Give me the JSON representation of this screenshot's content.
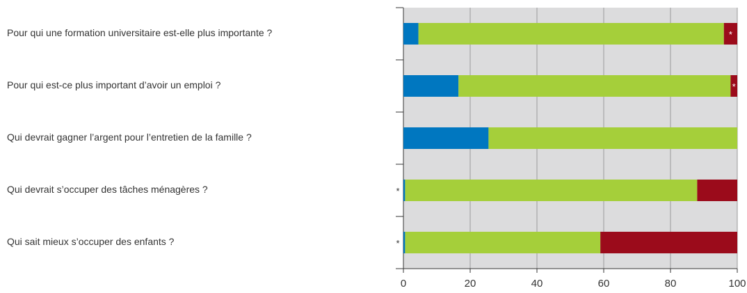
{
  "chart_data": {
    "type": "stacked_barh",
    "categories": [
      "Pour qui une formation universitaire est-elle plus importante ?",
      "Pour qui est-ce plus important d’avoir un emploi ?",
      "Qui devrait gagner l’argent pour l’entretien de la famille ?",
      "Qui devrait s’occuper des tâches ménagères ?",
      "Qui sait mieux s’occuper des enfants ?"
    ],
    "series": [
      {
        "color": "#0077c0",
        "values": [
          4.5,
          16.5,
          25.5,
          0.5,
          0.5
        ]
      },
      {
        "color": "#a5cf3a",
        "values": [
          91.5,
          81.5,
          74.5,
          87.5,
          58.5
        ]
      },
      {
        "color": "#9b0b1b",
        "values": [
          4,
          2,
          0,
          12,
          41
        ]
      }
    ],
    "annotations": [
      {
        "text": "*",
        "series": 2,
        "category": 0
      },
      {
        "text": "*",
        "series": 2,
        "category": 1
      },
      {
        "text": "*",
        "series": 0,
        "category": 3
      },
      {
        "text": "*",
        "series": 0,
        "category": 4
      }
    ],
    "xlim": [
      0,
      100
    ],
    "xticks": [
      0,
      20,
      40,
      60,
      80,
      100
    ],
    "grid": true
  }
}
